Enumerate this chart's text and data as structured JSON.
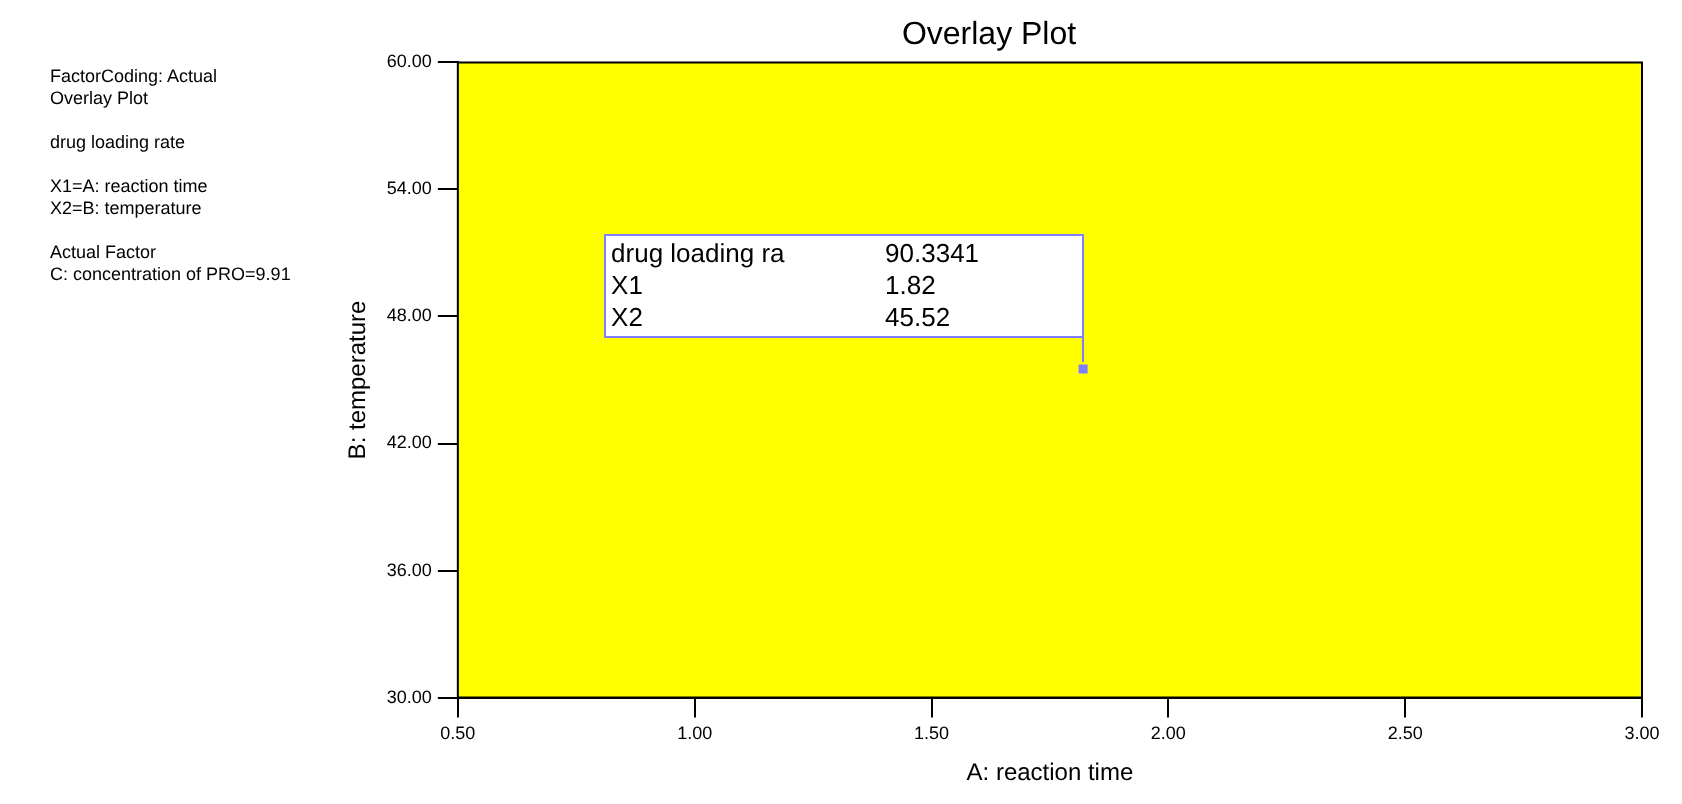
{
  "chart_data": {
    "type": "scatter",
    "title": "Overlay Plot",
    "xlabel": "A: reaction time",
    "ylabel": "B: temperature",
    "x": [
      1.82
    ],
    "values": [
      45.52
    ],
    "color": "#7f7fff",
    "marker": "square",
    "xlim": [
      0.5,
      3
    ],
    "xticks": [
      {
        "value": 0.5,
        "label": "0.50"
      },
      {
        "value": 1,
        "label": "1.00"
      },
      {
        "value": 1.5,
        "label": "1.50"
      },
      {
        "value": 2,
        "label": "2.00"
      },
      {
        "value": 2.5,
        "label": "2.50"
      },
      {
        "value": 3,
        "label": "3.00"
      }
    ],
    "ylim": [
      30,
      60
    ],
    "yticks": [
      {
        "value": 30,
        "label": "30.00"
      },
      {
        "value": 36,
        "label": "36.00"
      },
      {
        "value": 42,
        "label": "42.00"
      },
      {
        "value": 48,
        "label": "48.00"
      },
      {
        "value": 54,
        "label": "54.00"
      },
      {
        "value": 60,
        "label": "60.00"
      }
    ],
    "bands": [
      {
        "axis": "y",
        "from": 30,
        "to": 60,
        "color": "#ffff00"
      }
    ],
    "grid": false,
    "legend": false,
    "annotations": [
      "FactorCoding: Actual\nOverlay Plot",
      "drug loading rate",
      "X1=A: reaction time\nX2=B: temperature",
      "Actual Factor\nC: concentration of PRO=9.91",
      "drug loading ra",
      "90.3341",
      "X1",
      "1.82",
      "X2",
      "45.52"
    ]
  }
}
